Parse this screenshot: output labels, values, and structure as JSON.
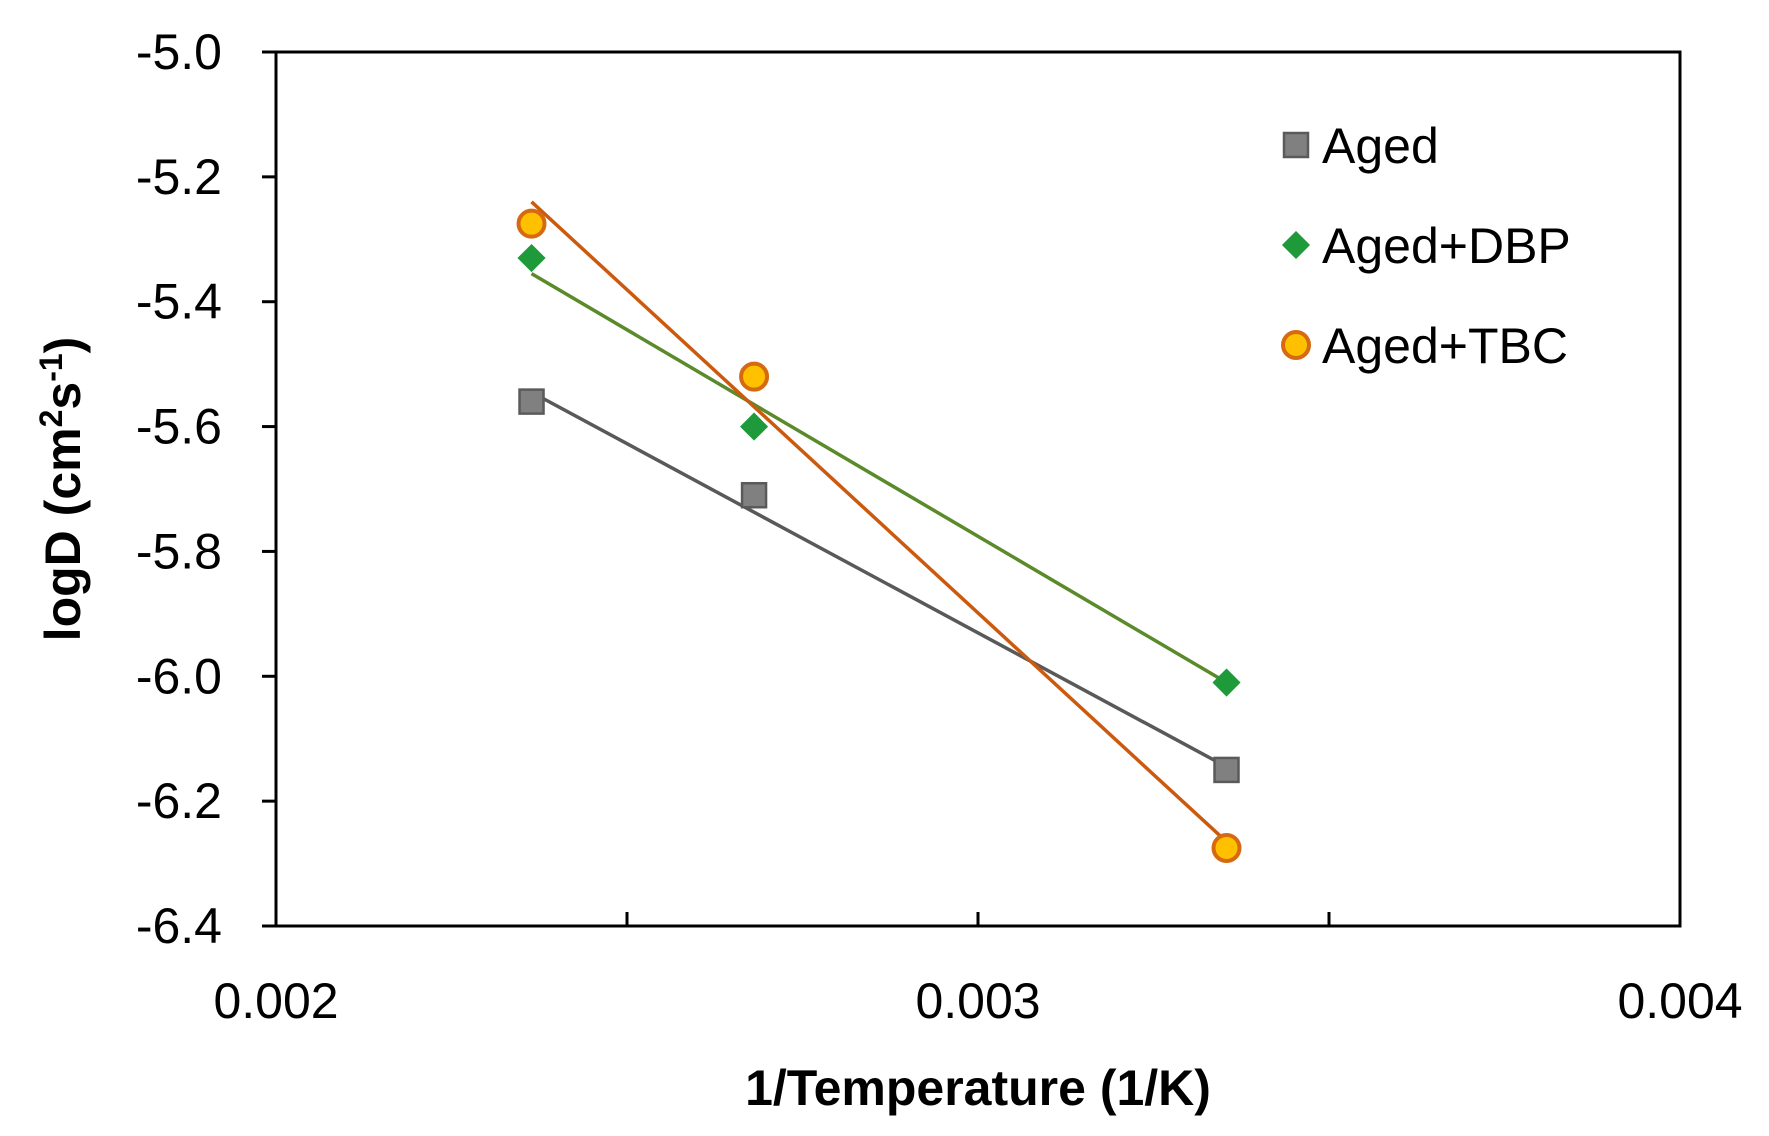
{
  "chart_data": {
    "type": "scatter",
    "title": "",
    "xlabel": "1/Temperature (1/K)",
    "ylabel_main": "logD (cm",
    "ylabel_sup1": "2",
    "ylabel_mid": "s",
    "ylabel_sup2": "-1",
    "ylabel_end": ")",
    "xlim": [
      0.002,
      0.004
    ],
    "ylim": [
      -6.4,
      -5.0
    ],
    "xticks": [
      0.002,
      0.0025,
      0.003,
      0.0035,
      0.004
    ],
    "xtick_labels": [
      "0.002",
      "",
      "0.003",
      "",
      "0.004"
    ],
    "yticks": [
      -5.0,
      -5.2,
      -5.4,
      -5.6,
      -5.8,
      -6.0,
      -6.2,
      -6.4
    ],
    "ytick_labels": [
      "-5.0",
      "-5.2",
      "-5.4",
      "-5.6",
      "-5.8",
      "-6.0",
      "-6.2",
      "-6.4"
    ],
    "grid": false,
    "legend_position": "top-right",
    "series": [
      {
        "name": "Aged",
        "marker": "square",
        "color": "#808080",
        "stroke": "#5a5a5a",
        "line_color": "#595959",
        "x": [
          0.002364,
          0.002681,
          0.003354
        ],
        "y": [
          -5.56,
          -5.71,
          -6.15
        ],
        "fit": [
          [
            0.002364,
            -5.545
          ],
          [
            0.003354,
            -6.145
          ]
        ]
      },
      {
        "name": "Aged+DBP",
        "marker": "diamond",
        "color": "#1e9a3a",
        "stroke": "#1e9a3a",
        "line_color": "#5a8a2a",
        "x": [
          0.002364,
          0.002681,
          0.003354
        ],
        "y": [
          -5.33,
          -5.6,
          -6.01
        ],
        "fit": [
          [
            0.002364,
            -5.355
          ],
          [
            0.003354,
            -6.01
          ]
        ]
      },
      {
        "name": "Aged+TBC",
        "marker": "circle",
        "color": "#ffc000",
        "stroke": "#d56a10",
        "line_color": "#cc5a0e",
        "x": [
          0.002364,
          0.002681,
          0.003354
        ],
        "y": [
          -5.275,
          -5.52,
          -6.275
        ],
        "fit": [
          [
            0.002364,
            -5.24
          ],
          [
            0.003354,
            -6.265
          ]
        ]
      }
    ]
  }
}
